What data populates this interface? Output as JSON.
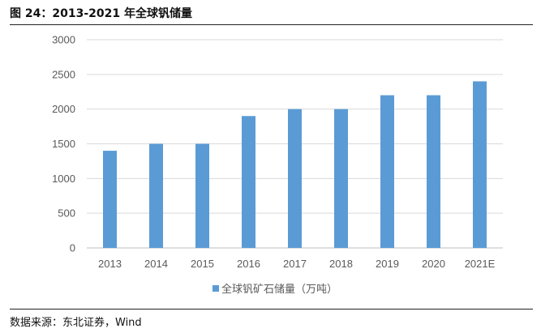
{
  "figure": {
    "title": "图 24：2013-2021 年全球钒储量",
    "source": "数据来源：东北证券，Wind"
  },
  "chart_data": {
    "type": "bar",
    "categories": [
      "2013",
      "2014",
      "2015",
      "2016",
      "2017",
      "2018",
      "2019",
      "2020",
      "2021E"
    ],
    "series": [
      {
        "name": "全球钒矿石储量（万吨）",
        "values": [
          1400,
          1500,
          1500,
          1900,
          2000,
          2000,
          2200,
          2200,
          2400
        ],
        "color": "#5b9bd5"
      }
    ],
    "y_ticks": [
      0,
      500,
      1000,
      1500,
      2000,
      2500,
      3000
    ],
    "ylim": [
      0,
      3000
    ],
    "grid": true,
    "legend": "bottom-center"
  }
}
